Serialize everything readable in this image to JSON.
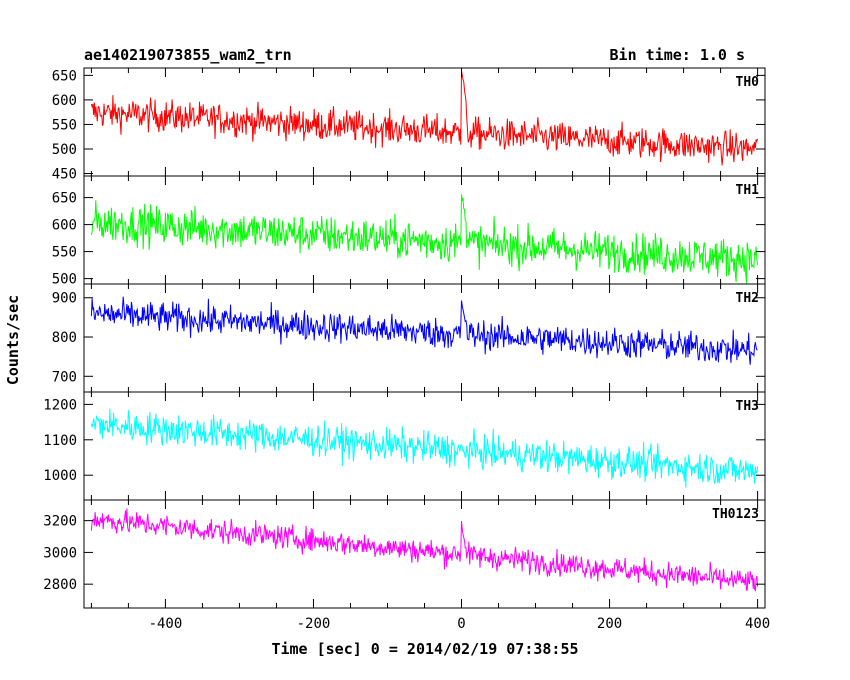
{
  "chart_data": {
    "type": "line",
    "title": "ae140219073855_wam2_trn",
    "subtitle": "Bin time: 1.0 s",
    "xlabel": "Time [sec] 0 = 2014/02/19 07:38:55",
    "ylabel": "Counts/sec",
    "xlim": [
      -510,
      410
    ],
    "xticks": [
      -400,
      -200,
      0,
      200,
      400
    ],
    "grid": false,
    "panels": [
      {
        "name": "TH0",
        "color": "#ff0000",
        "ylim": [
          445,
          665
        ],
        "yticks": [
          450,
          500,
          550,
          600,
          650
        ],
        "baseline_start": 575,
        "baseline_end": 500,
        "noise": 32,
        "spike_peak": 665
      },
      {
        "name": "TH1",
        "color": "#00ff00",
        "ylim": [
          490,
          690
        ],
        "yticks": [
          500,
          550,
          600,
          650
        ],
        "baseline_start": 605,
        "baseline_end": 535,
        "noise": 36,
        "spike_peak": 665
      },
      {
        "name": "TH2",
        "color": "#0000ff",
        "ylim": [
          660,
          935
        ],
        "yticks": [
          700,
          800,
          900
        ],
        "baseline_start": 860,
        "baseline_end": 765,
        "noise": 38,
        "spike_peak": 890
      },
      {
        "name": "TH3",
        "color": "#00ffff",
        "ylim": [
          930,
          1235
        ],
        "yticks": [
          1000,
          1100,
          1200
        ],
        "baseline_start": 1145,
        "baseline_end": 1010,
        "noise": 45,
        "spike_peak": 1080
      },
      {
        "name": "TH0123",
        "color": "#ff00ff",
        "ylim": [
          2650,
          3330
        ],
        "yticks": [
          2800,
          3000,
          3200
        ],
        "baseline_start": 3210,
        "baseline_end": 2810,
        "noise": 75,
        "spike_peak": 3180
      }
    ]
  }
}
